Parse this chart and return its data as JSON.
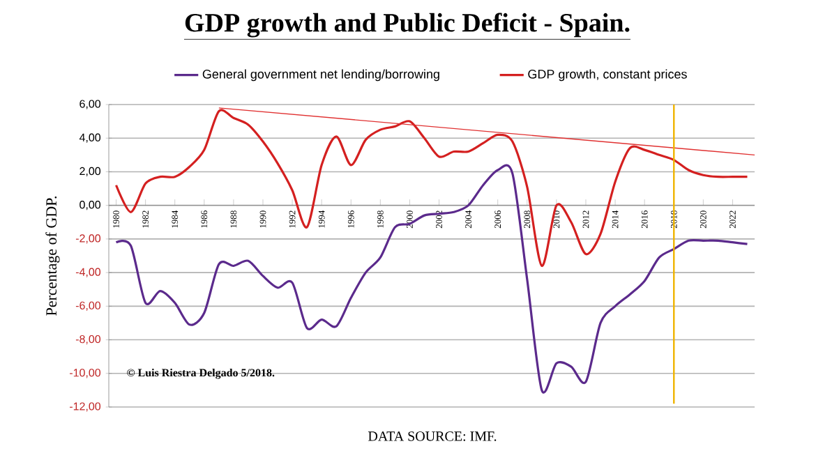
{
  "chart_data": {
    "type": "line",
    "title": "GDP growth and Public Deficit - Spain.",
    "ylabel": "Percentage of GDP.",
    "x": [
      1980,
      1981,
      1982,
      1983,
      1984,
      1985,
      1986,
      1987,
      1988,
      1989,
      1990,
      1991,
      1992,
      1993,
      1994,
      1995,
      1996,
      1997,
      1998,
      1999,
      2000,
      2001,
      2002,
      2003,
      2004,
      2005,
      2006,
      2007,
      2008,
      2009,
      2010,
      2011,
      2012,
      2013,
      2014,
      2015,
      2016,
      2017,
      2018,
      2019,
      2020,
      2021,
      2022,
      2023
    ],
    "series": [
      {
        "name": "General government net lending/borrowing",
        "color": "#5b2a8c",
        "values": [
          -2.2,
          -2.4,
          -5.8,
          -5.1,
          -5.8,
          -7.1,
          -6.4,
          -3.5,
          -3.6,
          -3.3,
          -4.2,
          -4.9,
          -4.6,
          -7.3,
          -6.8,
          -7.2,
          -5.5,
          -4.0,
          -3.1,
          -1.3,
          -1.1,
          -0.6,
          -0.5,
          -0.4,
          0.0,
          1.2,
          2.1,
          1.9,
          -4.4,
          -11.0,
          -9.4,
          -9.6,
          -10.5,
          -7.0,
          -6.0,
          -5.3,
          -4.5,
          -3.1,
          -2.6,
          -2.1,
          -2.1,
          -2.1,
          -2.2,
          -2.3
        ]
      },
      {
        "name": "GDP growth, constant prices",
        "color": "#d42020",
        "values": [
          1.2,
          -0.4,
          1.3,
          1.7,
          1.7,
          2.3,
          3.3,
          5.6,
          5.2,
          4.8,
          3.8,
          2.5,
          0.9,
          -1.3,
          2.4,
          4.1,
          2.4,
          3.9,
          4.5,
          4.7,
          5.0,
          4.0,
          2.9,
          3.2,
          3.2,
          3.7,
          4.2,
          3.8,
          1.1,
          -3.6,
          0.0,
          -1.0,
          -2.9,
          -1.7,
          1.4,
          3.4,
          3.3,
          3.0,
          2.7,
          2.1,
          1.8,
          1.7,
          1.7,
          1.7
        ]
      },
      {
        "type": "line",
        "color": "#e03030",
        "x": [
          1987,
          2023.5
        ],
        "values": [
          5.8,
          3.0
        ]
      }
    ],
    "xlim": [
      1979.5,
      2023.5
    ],
    "xticks": [
      1980,
      1982,
      1984,
      1986,
      1988,
      1990,
      1992,
      1994,
      1996,
      1998,
      2000,
      2002,
      2004,
      2006,
      2008,
      2010,
      2012,
      2014,
      2016,
      2018,
      2020,
      2022
    ],
    "ylim": [
      -12,
      6
    ],
    "yticks": [
      {
        "value": 6,
        "label": "6,00"
      },
      {
        "value": 4,
        "label": "4,00"
      },
      {
        "value": 2,
        "label": "2,00"
      },
      {
        "value": 0,
        "label": "0,00"
      },
      {
        "value": -2,
        "label": "-2,00"
      },
      {
        "value": -4,
        "label": "-4,00"
      },
      {
        "value": -6,
        "label": "-6,00"
      },
      {
        "value": -8,
        "label": "-8,00"
      },
      {
        "value": -10,
        "label": "-10,00"
      },
      {
        "value": -12,
        "label": "-12,00"
      }
    ],
    "ref_lines": [
      {
        "axis": "x",
        "value": 2018,
        "color": "#f0b400"
      }
    ],
    "grid": "y",
    "legend": "top",
    "marker": "none",
    "line_style": "solid",
    "annotations": [
      "© Luis Riestra Delgado 5/2018.",
      "DATA SOURCE: IMF."
    ]
  }
}
